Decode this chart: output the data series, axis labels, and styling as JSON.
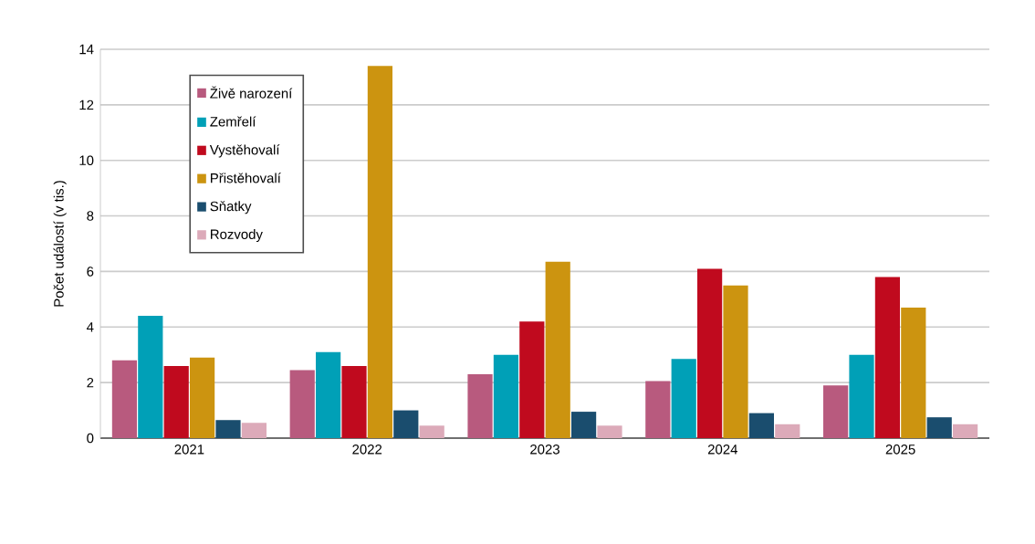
{
  "chart_data": {
    "type": "bar",
    "ylabel": "Počet událostí (v tis.)",
    "categories": [
      "2021",
      "2022",
      "2023",
      "2024",
      "2025"
    ],
    "series": [
      {
        "name": "Živě narození",
        "color": "#b85a7e",
        "values": [
          2.8,
          2.45,
          2.3,
          2.05,
          1.9
        ]
      },
      {
        "name": "Zemřelí",
        "color": "#00a0b7",
        "values": [
          4.4,
          3.1,
          3.0,
          2.85,
          3.0
        ]
      },
      {
        "name": "Vystěhovalí",
        "color": "#c00a1e",
        "values": [
          2.6,
          2.6,
          4.2,
          6.1,
          5.8
        ]
      },
      {
        "name": "Přistěhovalí",
        "color": "#cc9410",
        "values": [
          2.9,
          13.4,
          6.35,
          5.5,
          4.7
        ]
      },
      {
        "name": "Sňatky",
        "color": "#1a4d6e",
        "values": [
          0.65,
          1.0,
          0.95,
          0.9,
          0.75
        ]
      },
      {
        "name": "Rozvody",
        "color": "#dcaab9",
        "values": [
          0.55,
          0.45,
          0.45,
          0.5,
          0.5
        ]
      }
    ],
    "ylim": [
      0,
      14
    ],
    "yticks": [
      0,
      2,
      4,
      6,
      8,
      10,
      12,
      14
    ],
    "grid": "y",
    "legend": "top left"
  }
}
